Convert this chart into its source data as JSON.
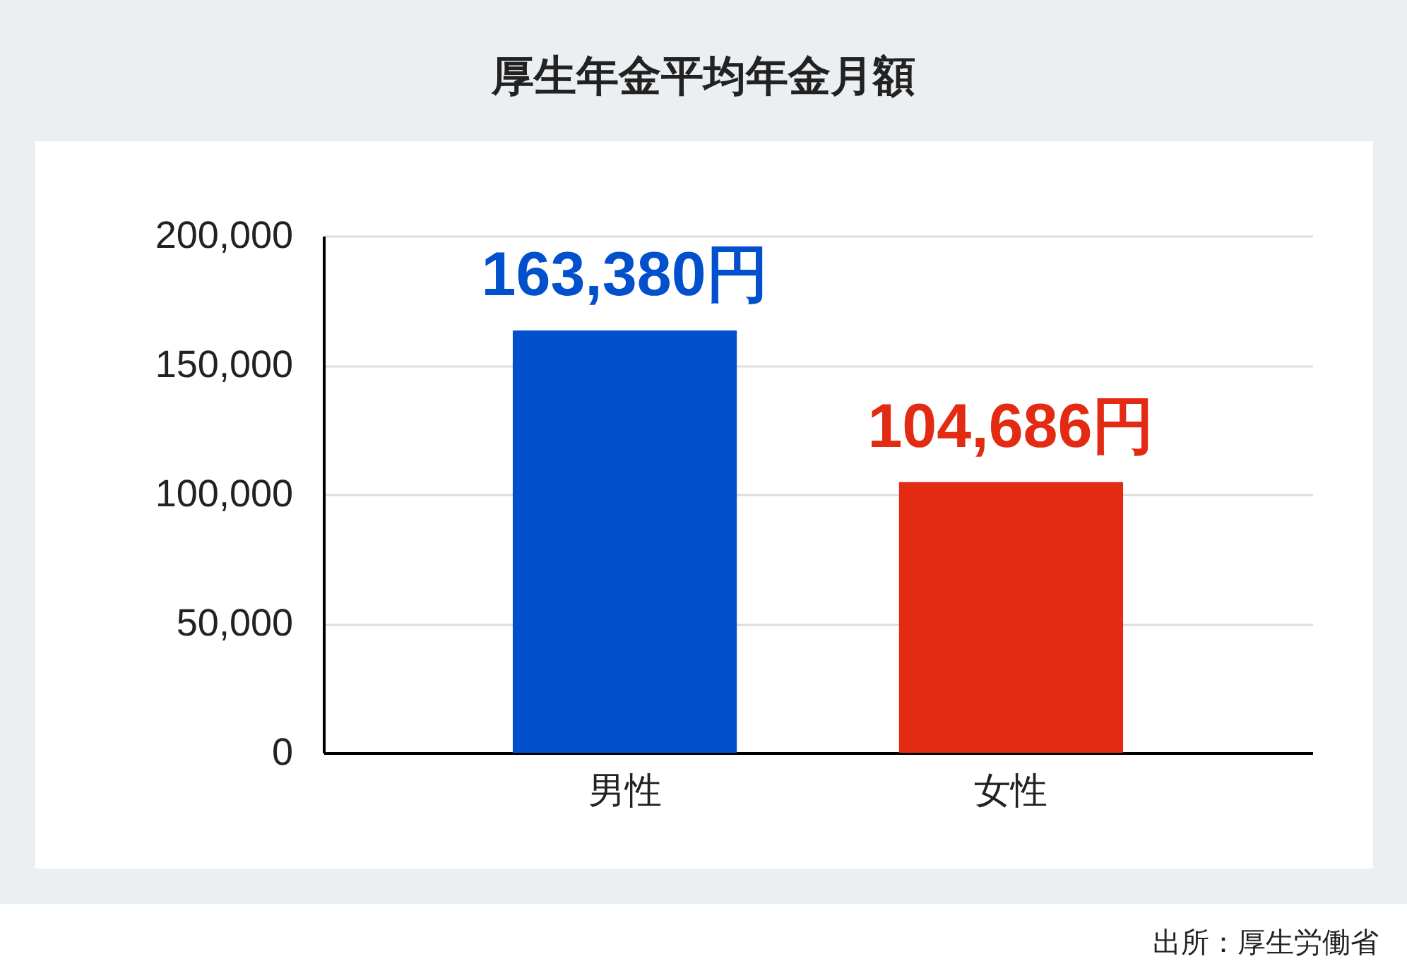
{
  "chart_data": {
    "type": "bar",
    "title": "厚生年金平均年金月額",
    "categories": [
      "男性",
      "女性"
    ],
    "values": [
      163380,
      104686
    ],
    "colors": [
      "#0350cc",
      "#e32a12"
    ],
    "value_labels": [
      "163,380円",
      "104,686円"
    ],
    "ylim": [
      0,
      200000
    ],
    "yticks": [
      0,
      {
        "value": 50000,
        "label": "50,000"
      },
      {
        "value": 100000,
        "label": "100,000"
      },
      {
        "value": 150000,
        "label": "150,000"
      },
      {
        "value": 200000,
        "label": "200,000"
      }
    ],
    "grid": "y",
    "annotations": [
      "出所：厚生労働省"
    ]
  }
}
